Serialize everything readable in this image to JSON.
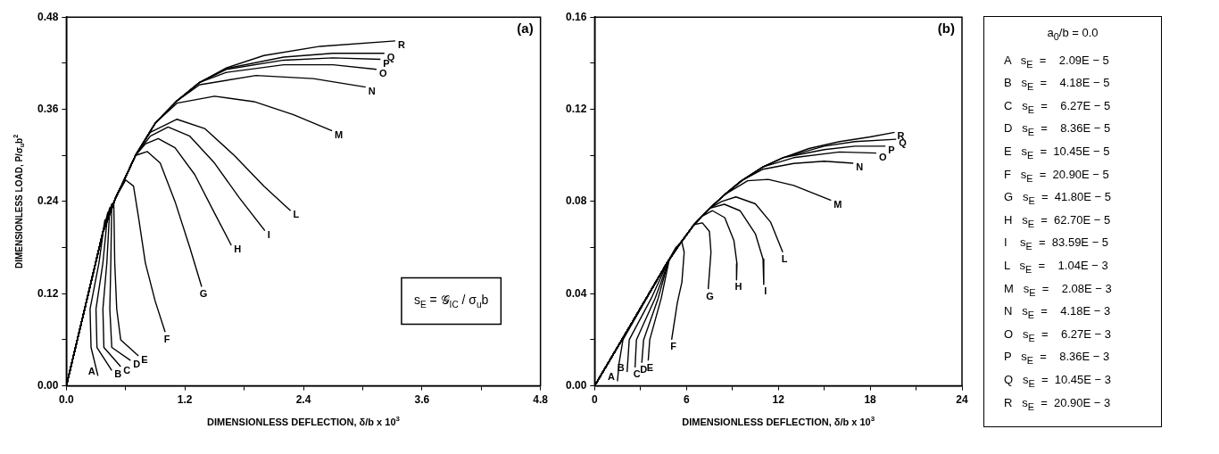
{
  "chart_data": [
    {
      "type": "line",
      "title": "(a)",
      "xlabel": "DIMENSIONLESS DEFLECTION, δ/b x 10$^{3}$",
      "ylabel": "DIMENSIONLESS LOAD, P/σ$_{u}$b$^{2}$",
      "xlim": [
        0,
        4.8
      ],
      "ylim": [
        0,
        0.48
      ],
      "xticks": [
        {
          "value": 0,
          "label": "0.0"
        },
        {
          "value": 0.6,
          "label": null
        },
        {
          "value": 1.2,
          "label": "1.2"
        },
        {
          "value": 1.8,
          "label": null
        },
        {
          "value": 2.4,
          "label": "2.4"
        },
        {
          "value": 3,
          "label": null
        },
        {
          "value": 3.6,
          "label": "3.6"
        },
        {
          "value": 4.2,
          "label": null
        },
        {
          "value": 4.8,
          "label": "4.8"
        }
      ],
      "yticks": [
        {
          "value": 0,
          "label": "0.00"
        },
        {
          "value": 0.06,
          "label": null
        },
        {
          "value": 0.12,
          "label": "0.12"
        },
        {
          "value": 0.18,
          "label": null
        },
        {
          "value": 0.24,
          "label": "0.24"
        },
        {
          "value": 0.3,
          "label": null
        },
        {
          "value": 0.36,
          "label": "0.36"
        },
        {
          "value": 0.42,
          "label": null
        },
        {
          "value": 0.48,
          "label": "0.48"
        }
      ],
      "grid": false,
      "legend": false,
      "marker": "none",
      "line_style": "solid",
      "annotations": [
        "s$_{E}$ = 𝒢$_{IC}$ / σ$_{u}$b"
      ],
      "series": [
        {
          "name": "A",
          "color": "#000000",
          "x": [
            0,
            0.2,
            0.37,
            0.39,
            0.33,
            0.24,
            0.25,
            0.32
          ],
          "values": [
            0,
            0.108,
            0.2,
            0.216,
            0.16,
            0.1,
            0.05,
            0.013
          ]
        },
        {
          "name": "B",
          "color": "#000000",
          "x": [
            0,
            0.2,
            0.37,
            0.42,
            0.37,
            0.3,
            0.31,
            0.46
          ],
          "values": [
            0,
            0.108,
            0.2,
            0.226,
            0.16,
            0.1,
            0.05,
            0.02
          ]
        },
        {
          "name": "C",
          "color": "#000000",
          "x": [
            0,
            0.2,
            0.37,
            0.44,
            0.41,
            0.37,
            0.38,
            0.55
          ],
          "values": [
            0,
            0.108,
            0.2,
            0.232,
            0.16,
            0.1,
            0.05,
            0.025
          ]
        },
        {
          "name": "D",
          "color": "#000000",
          "x": [
            0,
            0.2,
            0.37,
            0.46,
            0.45,
            0.44,
            0.46,
            0.65
          ],
          "values": [
            0,
            0.108,
            0.2,
            0.237,
            0.16,
            0.1,
            0.05,
            0.033
          ]
        },
        {
          "name": "E",
          "color": "#000000",
          "x": [
            0,
            0.2,
            0.37,
            0.48,
            0.49,
            0.51,
            0.55,
            0.73
          ],
          "values": [
            0,
            0.108,
            0.2,
            0.24,
            0.16,
            0.1,
            0.06,
            0.039
          ]
        },
        {
          "name": "F",
          "color": "#000000",
          "x": [
            0,
            0.2,
            0.37,
            0.5,
            0.6,
            0.68,
            0.73,
            0.8,
            0.9,
            1.0
          ],
          "values": [
            0,
            0.108,
            0.2,
            0.245,
            0.268,
            0.26,
            0.22,
            0.16,
            0.11,
            0.07
          ]
        },
        {
          "name": "G",
          "color": "#000000",
          "x": [
            0,
            0.2,
            0.37,
            0.5,
            0.6,
            0.7,
            0.82,
            0.95,
            1.1,
            1.25,
            1.37
          ],
          "values": [
            0,
            0.108,
            0.2,
            0.245,
            0.272,
            0.3,
            0.305,
            0.29,
            0.24,
            0.18,
            0.129
          ]
        },
        {
          "name": "H",
          "color": "#000000",
          "x": [
            0,
            0.2,
            0.37,
            0.5,
            0.6,
            0.7,
            0.8,
            0.93,
            1.1,
            1.3,
            1.5,
            1.67
          ],
          "values": [
            0,
            0.108,
            0.2,
            0.245,
            0.272,
            0.3,
            0.315,
            0.322,
            0.31,
            0.275,
            0.225,
            0.183
          ]
        },
        {
          "name": "I",
          "color": "#000000",
          "x": [
            0,
            0.2,
            0.37,
            0.5,
            0.6,
            0.7,
            0.85,
            1.03,
            1.25,
            1.5,
            1.75,
            2.01
          ],
          "values": [
            0,
            0.108,
            0.2,
            0.245,
            0.272,
            0.3,
            0.325,
            0.337,
            0.325,
            0.29,
            0.245,
            0.202
          ]
        },
        {
          "name": "L",
          "color": "#000000",
          "x": [
            0,
            0.2,
            0.37,
            0.5,
            0.6,
            0.7,
            0.85,
            1.12,
            1.4,
            1.7,
            2.0,
            2.27
          ],
          "values": [
            0,
            0.108,
            0.2,
            0.245,
            0.272,
            0.3,
            0.33,
            0.347,
            0.335,
            0.3,
            0.26,
            0.228
          ]
        },
        {
          "name": "M",
          "color": "#000000",
          "x": [
            0,
            0.2,
            0.37,
            0.5,
            0.6,
            0.7,
            0.9,
            1.12,
            1.5,
            1.9,
            2.3,
            2.69
          ],
          "values": [
            0,
            0.108,
            0.2,
            0.245,
            0.272,
            0.3,
            0.342,
            0.368,
            0.377,
            0.37,
            0.353,
            0.332
          ]
        },
        {
          "name": "N",
          "color": "#000000",
          "x": [
            0,
            0.2,
            0.37,
            0.5,
            0.6,
            0.7,
            0.9,
            1.12,
            1.35,
            1.92,
            2.5,
            3.03
          ],
          "values": [
            0,
            0.108,
            0.2,
            0.245,
            0.272,
            0.3,
            0.342,
            0.371,
            0.392,
            0.404,
            0.4,
            0.389
          ]
        },
        {
          "name": "O",
          "color": "#000000",
          "x": [
            0,
            0.2,
            0.37,
            0.5,
            0.6,
            0.7,
            0.9,
            1.12,
            1.35,
            1.62,
            2.2,
            2.7,
            3.14
          ],
          "values": [
            0,
            0.108,
            0.2,
            0.245,
            0.272,
            0.3,
            0.342,
            0.371,
            0.395,
            0.408,
            0.418,
            0.418,
            0.412
          ]
        },
        {
          "name": "P",
          "color": "#000000",
          "x": [
            0,
            0.2,
            0.37,
            0.5,
            0.6,
            0.7,
            0.9,
            1.12,
            1.35,
            1.62,
            2.2,
            2.7,
            3.18
          ],
          "values": [
            0,
            0.108,
            0.2,
            0.245,
            0.272,
            0.3,
            0.342,
            0.371,
            0.395,
            0.412,
            0.424,
            0.427,
            0.425
          ]
        },
        {
          "name": "Q",
          "color": "#000000",
          "x": [
            0,
            0.2,
            0.37,
            0.5,
            0.6,
            0.7,
            0.9,
            1.12,
            1.35,
            1.62,
            2.2,
            2.7,
            3.22
          ],
          "values": [
            0,
            0.108,
            0.2,
            0.245,
            0.272,
            0.3,
            0.342,
            0.371,
            0.395,
            0.413,
            0.428,
            0.433,
            0.433
          ]
        },
        {
          "name": "R",
          "color": "#000000",
          "x": [
            0,
            0.2,
            0.37,
            0.5,
            0.6,
            0.7,
            0.9,
            1.12,
            1.35,
            1.62,
            2.0,
            2.57,
            3.33
          ],
          "values": [
            0,
            0.108,
            0.2,
            0.245,
            0.272,
            0.3,
            0.342,
            0.371,
            0.395,
            0.414,
            0.43,
            0.442,
            0.449
          ]
        }
      ]
    },
    {
      "type": "line",
      "title": "(b)",
      "xlabel": "DIMENSIONLESS DEFLECTION, δ/b x 10$^{3}$",
      "xlim": [
        0,
        24
      ],
      "ylim": [
        0,
        0.16
      ],
      "xticks": [
        {
          "value": 0,
          "label": "0"
        },
        {
          "value": 3,
          "label": null
        },
        {
          "value": 6,
          "label": "6"
        },
        {
          "value": 9,
          "label": null
        },
        {
          "value": 12,
          "label": "12"
        },
        {
          "value": 15,
          "label": null
        },
        {
          "value": 18,
          "label": "18"
        },
        {
          "value": 21,
          "label": null
        },
        {
          "value": 24,
          "label": "24"
        }
      ],
      "yticks": [
        {
          "value": 0,
          "label": "0.00"
        },
        {
          "value": 0.02,
          "label": null
        },
        {
          "value": 0.04,
          "label": "0.04"
        },
        {
          "value": 0.06,
          "label": null
        },
        {
          "value": 0.08,
          "label": "0.08"
        },
        {
          "value": 0.1,
          "label": null
        },
        {
          "value": 0.12,
          "label": "0.12"
        },
        {
          "value": 0.14,
          "label": null
        },
        {
          "value": 0.16,
          "label": "0.16"
        }
      ],
      "grid": false,
      "legend": false,
      "marker": "none",
      "line_style": "solid",
      "series": [
        {
          "name": "A",
          "color": "#000000",
          "x": [
            0,
            2.4,
            4.7,
            4.84,
            3.4,
            1.85,
            1.6,
            1.49
          ],
          "values": [
            0,
            0.027,
            0.053,
            0.0545,
            0.038,
            0.02,
            0.01,
            0.002
          ]
        },
        {
          "name": "B",
          "color": "#000000",
          "x": [
            0,
            2.4,
            4.7,
            4.84,
            3.7,
            2.26,
            2.12
          ],
          "values": [
            0,
            0.027,
            0.053,
            0.0545,
            0.038,
            0.02,
            0.006
          ]
        },
        {
          "name": "C",
          "color": "#000000",
          "x": [
            0,
            2.4,
            4.7,
            4.86,
            3.95,
            2.73,
            2.64
          ],
          "values": [
            0,
            0.027,
            0.053,
            0.0545,
            0.038,
            0.02,
            0.008
          ]
        },
        {
          "name": "D",
          "color": "#000000",
          "x": [
            0,
            2.4,
            4.7,
            4.86,
            4.15,
            3.2,
            3.08
          ],
          "values": [
            0,
            0.027,
            0.053,
            0.055,
            0.038,
            0.02,
            0.01
          ]
        },
        {
          "name": "E",
          "color": "#000000",
          "x": [
            0,
            2.4,
            4.7,
            4.88,
            4.35,
            3.6,
            3.5
          ],
          "values": [
            0,
            0.027,
            0.053,
            0.055,
            0.038,
            0.02,
            0.011
          ]
        },
        {
          "name": "F",
          "color": "#000000",
          "x": [
            0,
            2.4,
            4.7,
            5.3,
            5.7,
            5.85,
            5.7,
            5.4,
            5.03
          ],
          "values": [
            0,
            0.027,
            0.053,
            0.06,
            0.0624,
            0.058,
            0.045,
            0.036,
            0.02
          ]
        },
        {
          "name": "G",
          "color": "#000000",
          "x": [
            0,
            2.4,
            4.7,
            5.5,
            6.5,
            7.04,
            7.5,
            7.6,
            7.42
          ],
          "values": [
            0,
            0.027,
            0.053,
            0.061,
            0.07,
            0.0707,
            0.067,
            0.058,
            0.042
          ]
        },
        {
          "name": "H",
          "color": "#000000",
          "x": [
            0,
            2.4,
            4.7,
            5.5,
            6.5,
            7.0,
            7.7,
            8.5,
            9.1,
            9.3,
            9.27
          ],
          "values": [
            0,
            0.027,
            0.053,
            0.061,
            0.07,
            0.0735,
            0.076,
            0.073,
            0.063,
            0.053,
            0.046
          ]
        },
        {
          "name": "I",
          "color": "#000000",
          "x": [
            0,
            2.4,
            4.7,
            5.5,
            6.5,
            7.5,
            8.47,
            9.5,
            10.5,
            11.0,
            11.05
          ],
          "values": [
            0,
            0.027,
            0.053,
            0.061,
            0.07,
            0.077,
            0.0788,
            0.076,
            0.066,
            0.055,
            0.044
          ]
        },
        {
          "name": "L",
          "color": "#000000",
          "x": [
            0,
            2.4,
            4.7,
            5.5,
            6.5,
            7.5,
            8.3,
            9.23,
            10.5,
            11.5,
            12.29
          ],
          "values": [
            0,
            0.027,
            0.053,
            0.061,
            0.07,
            0.077,
            0.08,
            0.082,
            0.079,
            0.071,
            0.058
          ]
        },
        {
          "name": "M",
          "color": "#000000",
          "x": [
            0,
            2.4,
            4.7,
            5.5,
            6.5,
            7.5,
            8.5,
            10,
            11.34,
            13,
            15.45
          ],
          "values": [
            0,
            0.027,
            0.053,
            0.061,
            0.07,
            0.077,
            0.083,
            0.089,
            0.0896,
            0.087,
            0.0805
          ]
        },
        {
          "name": "N",
          "color": "#000000",
          "x": [
            0,
            2.4,
            4.7,
            5.5,
            6.5,
            7.5,
            8.5,
            9.6,
            11,
            13,
            15,
            16.9
          ],
          "values": [
            0,
            0.027,
            0.053,
            0.061,
            0.07,
            0.077,
            0.083,
            0.089,
            0.094,
            0.0965,
            0.0975,
            0.0966
          ]
        },
        {
          "name": "O",
          "color": "#000000",
          "x": [
            0,
            2.4,
            4.7,
            5.5,
            6.5,
            7.5,
            8.5,
            9.6,
            11,
            13,
            16,
            18.4
          ],
          "values": [
            0,
            0.027,
            0.053,
            0.061,
            0.07,
            0.077,
            0.083,
            0.089,
            0.095,
            0.099,
            0.1015,
            0.101
          ]
        },
        {
          "name": "P",
          "color": "#000000",
          "x": [
            0,
            2.4,
            4.7,
            5.5,
            6.5,
            7.5,
            8.5,
            9.6,
            11,
            12.3,
            15,
            17,
            19.0
          ],
          "values": [
            0,
            0.027,
            0.053,
            0.061,
            0.07,
            0.077,
            0.083,
            0.089,
            0.095,
            0.099,
            0.1025,
            0.104,
            0.104
          ]
        },
        {
          "name": "Q",
          "color": "#000000",
          "x": [
            0,
            2.4,
            4.7,
            5.5,
            6.5,
            7.5,
            8.5,
            9.6,
            11,
            12.3,
            15,
            17,
            19.7
          ],
          "values": [
            0,
            0.027,
            0.053,
            0.061,
            0.07,
            0.077,
            0.083,
            0.089,
            0.095,
            0.099,
            0.104,
            0.106,
            0.107
          ]
        },
        {
          "name": "R",
          "color": "#000000",
          "x": [
            0,
            2.4,
            4.7,
            5.5,
            6.5,
            7.5,
            8.5,
            9.6,
            11,
            12.3,
            14,
            16,
            18,
            19.6
          ],
          "values": [
            0,
            0.027,
            0.053,
            0.061,
            0.07,
            0.077,
            0.083,
            0.089,
            0.095,
            0.099,
            0.103,
            0.106,
            0.108,
            0.11
          ]
        }
      ]
    },
    {
      "type": "other",
      "title": "a$_{0}$/b = 0.0",
      "annotations": [
        "A   s$_{E}$  =    2.09E − 5",
        "B   s$_{E}$  =    4.18E − 5",
        "C   s$_{E}$  =    6.27E − 5",
        "D   s$_{E}$  =    8.36E − 5",
        "E   s$_{E}$  =  10.45E − 5",
        "F   s$_{E}$  =  20.90E − 5",
        "G   s$_{E}$  =  41.80E − 5",
        "H   s$_{E}$  =  62.70E − 5",
        "I    s$_{E}$  =  83.59E − 5",
        "L   s$_{E}$  =    1.04E − 3",
        "M   s$_{E}$  =    2.08E − 3",
        "N   s$_{E}$  =    4.18E − 3",
        "O   s$_{E}$  =    6.27E − 3",
        "P   s$_{E}$  =    8.36E − 3",
        "Q   s$_{E}$  =  10.45E − 3",
        "R   s$_{E}$  =  20.90E − 3"
      ]
    }
  ]
}
